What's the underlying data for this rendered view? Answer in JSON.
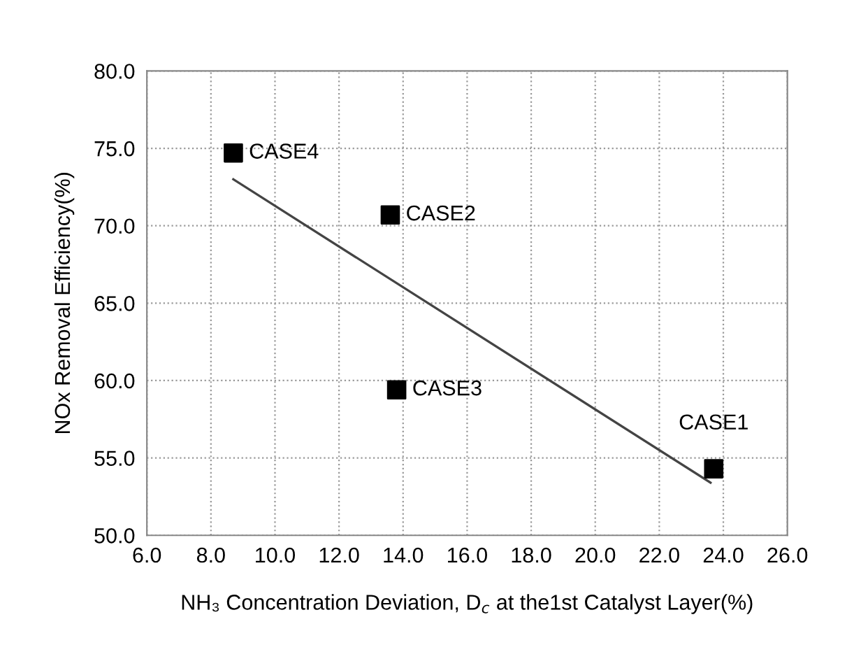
{
  "chart_data": {
    "type": "scatter",
    "xlabel": "NH₃ Concentration Deviation, D$_{c}$ at the1st Catalyst Layer(%)",
    "ylabel": "NOx Removal Efficiency(%)",
    "series": [
      {
        "color": "#000000",
        "marker": "square",
        "x": [
          23.7,
          13.6,
          13.8,
          8.7
        ],
        "values": [
          54.3,
          70.7,
          59.4,
          74.7
        ]
      },
      {
        "type": "line",
        "color": "#444444",
        "line_style": "solid",
        "x": [
          8.7,
          23.6
        ],
        "values": [
          73.0,
          53.4
        ]
      }
    ],
    "annotations": [
      {
        "text": "CASE1",
        "x": 23.7,
        "y": 54.3
      },
      {
        "text": "CASE2",
        "x": 13.6,
        "y": 70.7
      },
      {
        "text": "CASE3",
        "x": 13.8,
        "y": 59.4
      },
      {
        "text": "CASE4",
        "x": 8.7,
        "y": 74.7
      }
    ],
    "xlim": [
      6,
      26
    ],
    "ylim": [
      50,
      80
    ],
    "xticks": [
      {
        "value": 6,
        "label": "6.0"
      },
      {
        "value": 8,
        "label": "8.0"
      },
      {
        "value": 10,
        "label": "10.0"
      },
      {
        "value": 12,
        "label": "12.0"
      },
      {
        "value": 14,
        "label": "14.0"
      },
      {
        "value": 16,
        "label": "16.0"
      },
      {
        "value": 18,
        "label": "18.0"
      },
      {
        "value": 20,
        "label": "20.0"
      },
      {
        "value": 22,
        "label": "22.0"
      },
      {
        "value": 24,
        "label": "24.0"
      },
      {
        "value": 26,
        "label": "26.0"
      }
    ],
    "yticks": [
      {
        "value": 50,
        "label": "50.0"
      },
      {
        "value": 55,
        "label": "55.0"
      },
      {
        "value": 60,
        "label": "60.0"
      },
      {
        "value": 65,
        "label": "65.0"
      },
      {
        "value": 70,
        "label": "70.0"
      },
      {
        "value": 75,
        "label": "75.0"
      },
      {
        "value": 80,
        "label": "80.0"
      }
    ],
    "grid": true
  }
}
